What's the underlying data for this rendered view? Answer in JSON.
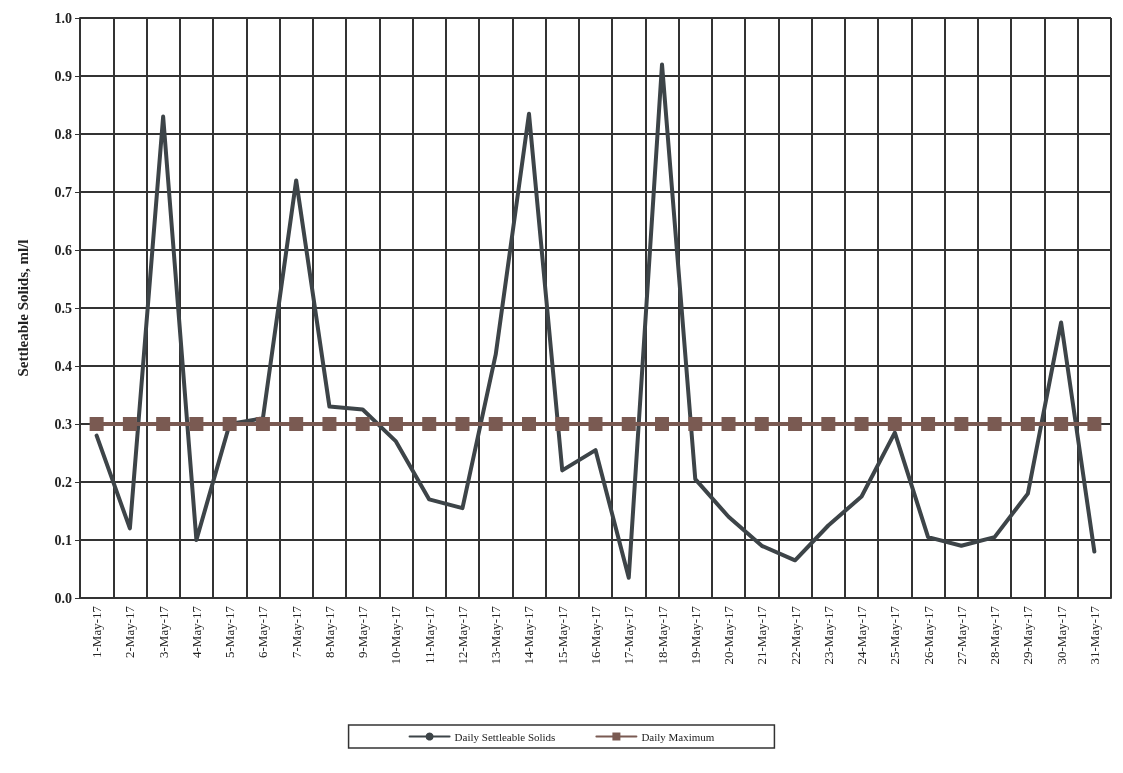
{
  "chart_data": {
    "type": "line",
    "ylabel": "Settleable Solids, ml/l",
    "categories": [
      "1-May-17",
      "2-May-17",
      "3-May-17",
      "4-May-17",
      "5-May-17",
      "6-May-17",
      "7-May-17",
      "8-May-17",
      "9-May-17",
      "10-May-17",
      "11-May-17",
      "12-May-17",
      "13-May-17",
      "14-May-17",
      "15-May-17",
      "16-May-17",
      "17-May-17",
      "18-May-17",
      "19-May-17",
      "20-May-17",
      "21-May-17",
      "22-May-17",
      "23-May-17",
      "24-May-17",
      "25-May-17",
      "26-May-17",
      "27-May-17",
      "28-May-17",
      "29-May-17",
      "30-May-17",
      "31-May-17"
    ],
    "series": [
      {
        "name": "Daily Settleable Solids",
        "color": "#3d4448",
        "marker": "none",
        "values": [
          0.28,
          0.12,
          0.83,
          0.1,
          0.3,
          0.31,
          0.72,
          0.33,
          0.325,
          0.27,
          0.17,
          0.155,
          0.42,
          0.835,
          0.22,
          0.255,
          0.035,
          0.92,
          0.205,
          0.14,
          0.09,
          0.065,
          0.125,
          0.175,
          0.285,
          0.105,
          0.09,
          0.105,
          0.18,
          0.475,
          0.08
        ]
      },
      {
        "name": "Daily Maximum",
        "color": "#7a5a52",
        "marker": "square",
        "values": [
          0.3,
          0.3,
          0.3,
          0.3,
          0.3,
          0.3,
          0.3,
          0.3,
          0.3,
          0.3,
          0.3,
          0.3,
          0.3,
          0.3,
          0.3,
          0.3,
          0.3,
          0.3,
          0.3,
          0.3,
          0.3,
          0.3,
          0.3,
          0.3,
          0.3,
          0.3,
          0.3,
          0.3,
          0.3,
          0.3,
          0.3
        ]
      }
    ],
    "ylim": [
      0,
      1
    ],
    "yticks": [
      {
        "value": 0,
        "label": "0.0"
      },
      0.1,
      0.2,
      0.3,
      0.4,
      0.5,
      0.6,
      0.7,
      0.8,
      0.9,
      {
        "value": 1,
        "label": "1.0"
      }
    ],
    "grid": true,
    "legend": "bottom",
    "line_style": "solid"
  }
}
